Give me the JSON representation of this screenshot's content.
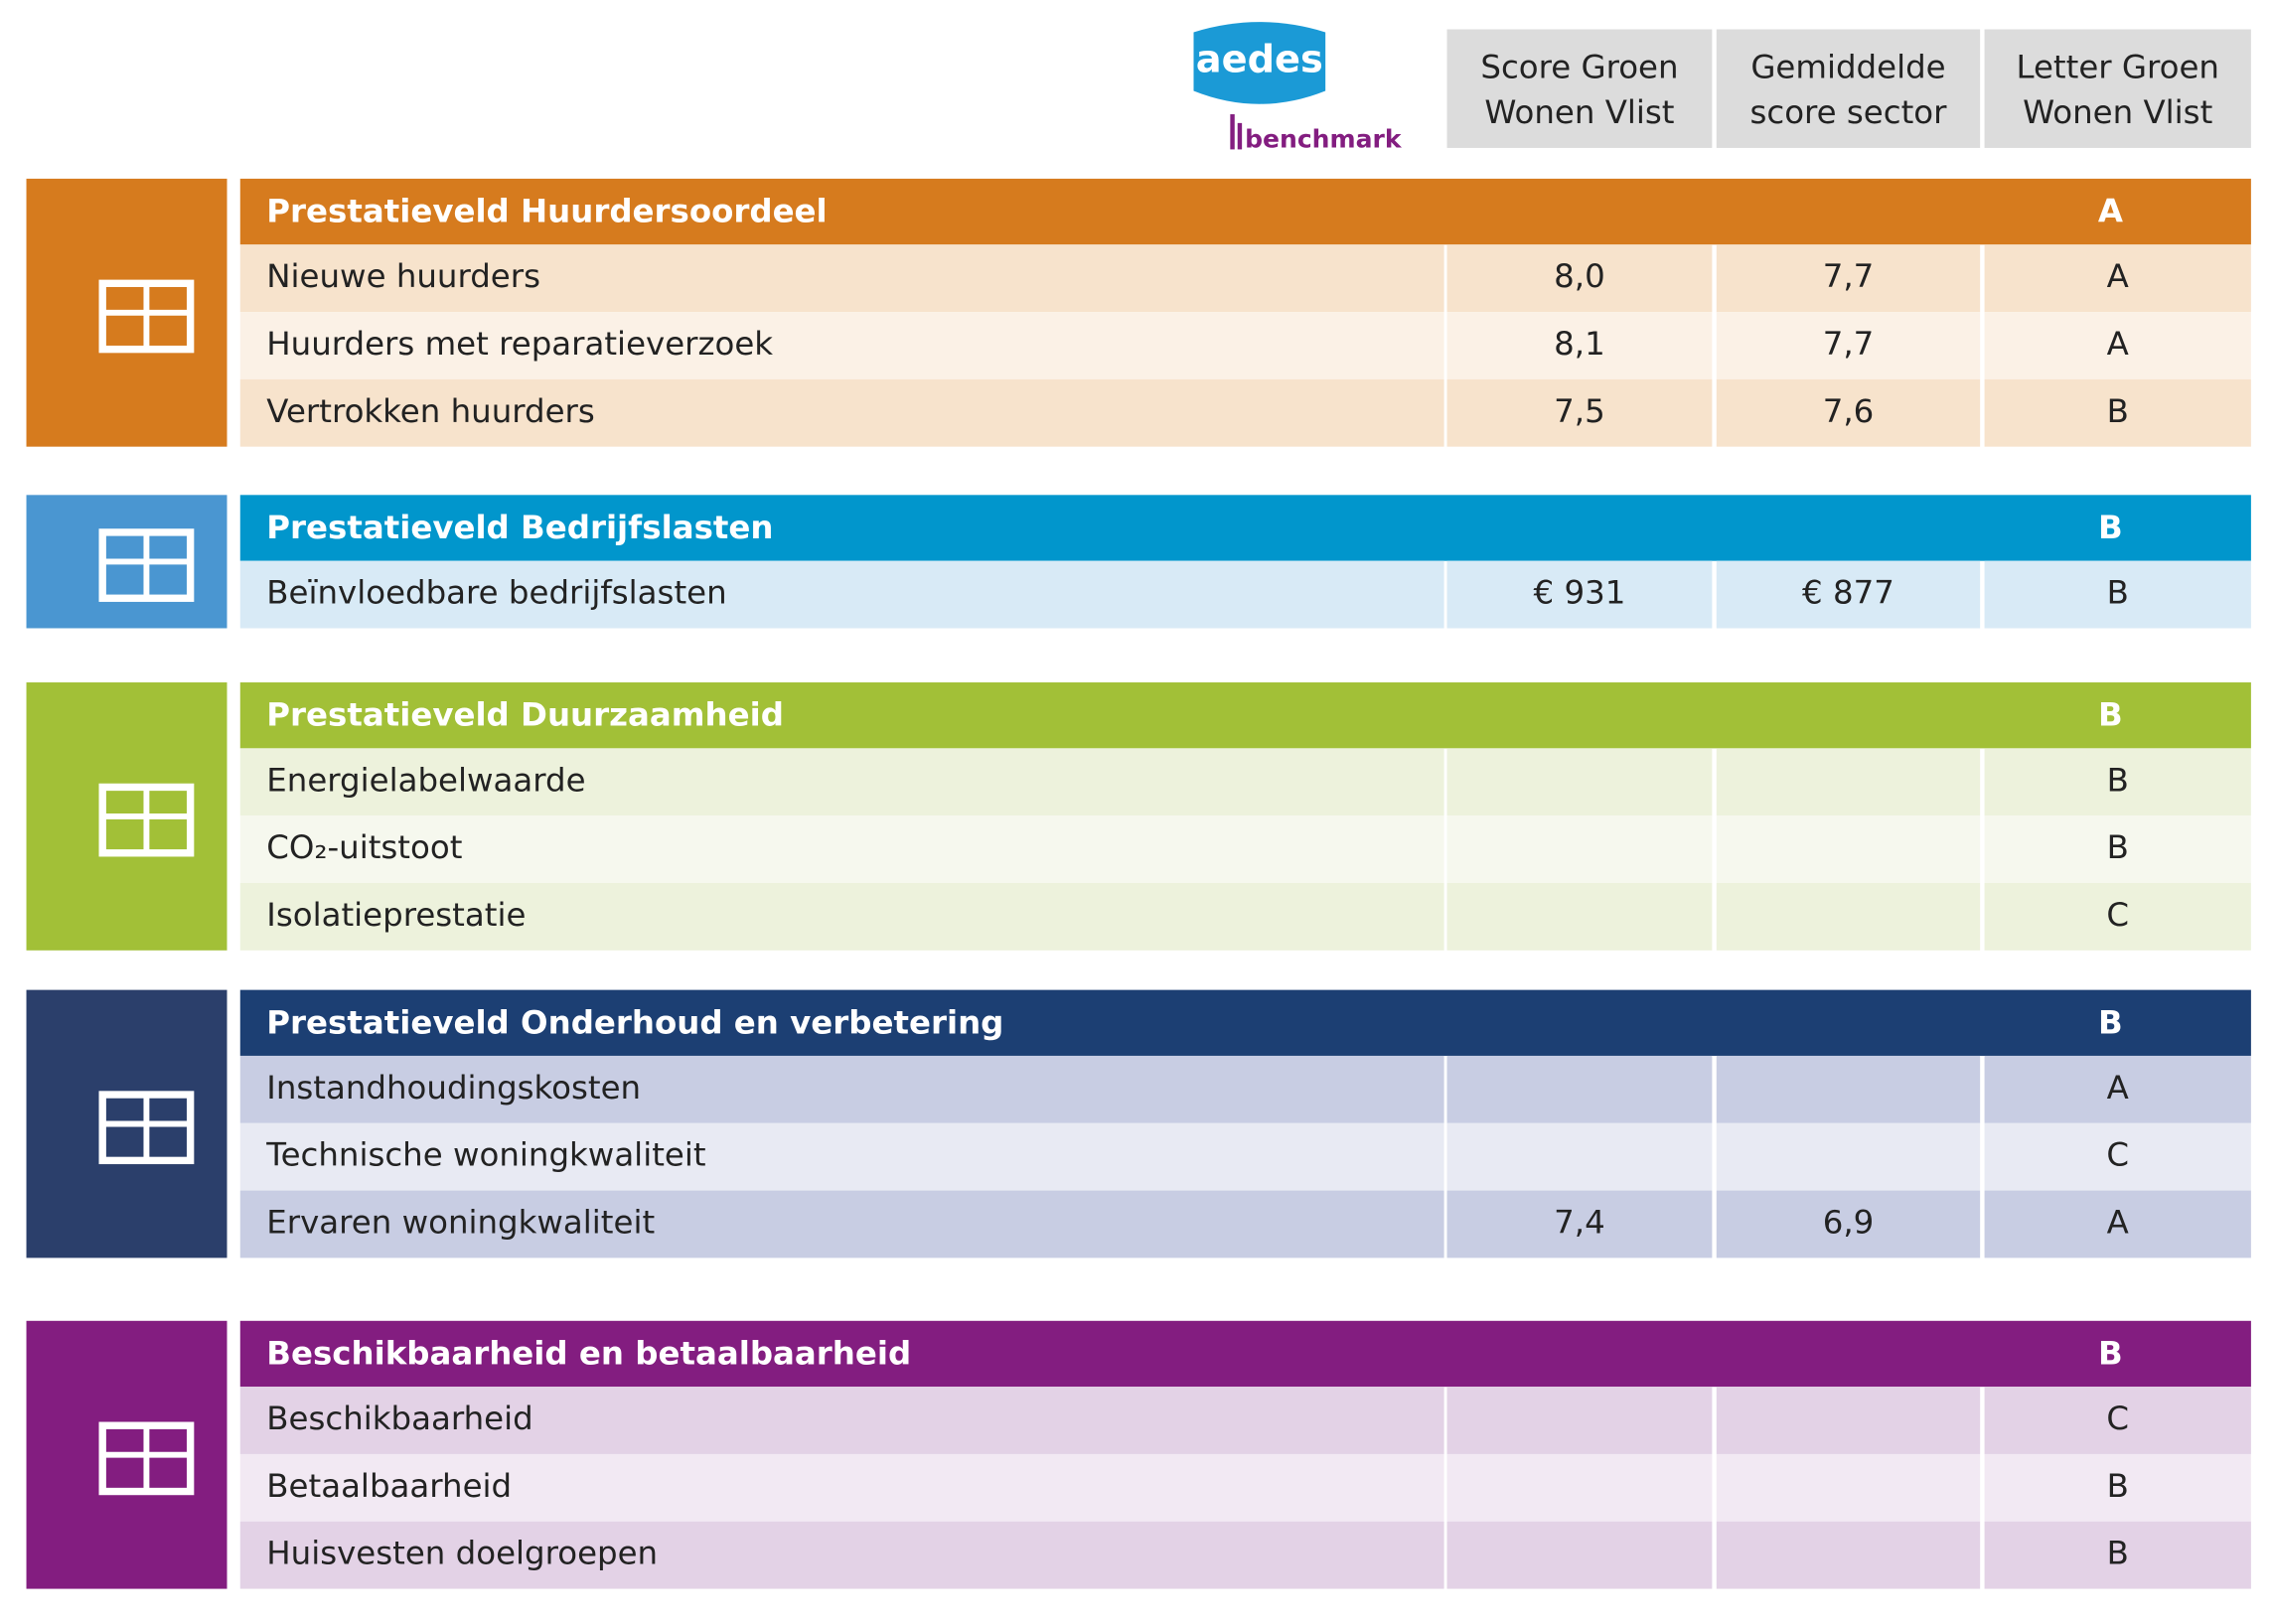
{
  "logo": {
    "brand": "aedes",
    "sub": "benchmark"
  },
  "columns": [
    [
      "Score Groen",
      "Wonen Vlist"
    ],
    [
      "Gemiddelde",
      "score sector"
    ],
    [
      "Letter Groen",
      "Wonen Vlist"
    ]
  ],
  "sections": [
    {
      "title": "Prestatieveld Huurdersoordeel",
      "letter": "A",
      "rows": [
        [
          "Nieuwe huurders",
          "8,0",
          "7,7",
          "A"
        ],
        [
          "Huurders met reparatieverzoek",
          "8,1",
          "7,7",
          "A"
        ],
        [
          "Vertrokken huurders",
          "7,5",
          "7,6",
          "B"
        ]
      ]
    },
    {
      "title": "Prestatieveld Bedrijfslasten",
      "letter": "B",
      "rows": [
        [
          "Beïnvloedbare bedrijfslasten",
          "€ 931",
          "€ 877",
          "B"
        ]
      ]
    },
    {
      "title": "Prestatieveld Duurzaamheid",
      "letter": "B",
      "rows": [
        [
          "Energielabelwaarde",
          null,
          null,
          "B"
        ],
        [
          "CO₂-uitstoot",
          null,
          null,
          "B"
        ],
        [
          "Isolatieprestatie",
          null,
          null,
          "C"
        ]
      ]
    },
    {
      "title": "Prestatieveld Onderhoud en verbetering",
      "letter": "B",
      "rows": [
        [
          "Instandhoudingskosten",
          null,
          null,
          "A"
        ],
        [
          "Technische woningkwaliteit",
          null,
          null,
          "C"
        ],
        [
          "Ervaren woningkwaliteit",
          "7,4",
          "6,9",
          "A"
        ]
      ]
    },
    {
      "title": "Beschikbaarheid en betaalbaarheid",
      "letter": "B",
      "rows": [
        [
          "Beschikbaarheid",
          null,
          null,
          "C"
        ],
        [
          "Betaalbaarheid",
          null,
          null,
          "B"
        ],
        [
          "Huisvesten doelgroepen",
          null,
          null,
          "B"
        ]
      ]
    }
  ]
}
